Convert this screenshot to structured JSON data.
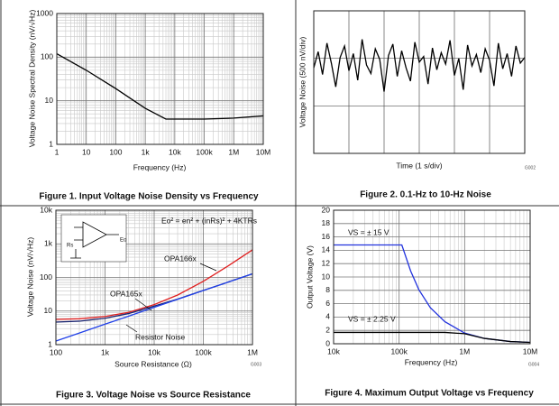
{
  "chart_data": [
    {
      "type": "line",
      "title": "Figure 1. Input Voltage Noise Density vs Frequency",
      "xlabel": "Frequency (Hz)",
      "ylabel": "Voltage Noise Spectral Density (nV/√Hz)",
      "xscale": "log",
      "yscale": "log",
      "grid": true,
      "color": "#000000",
      "x": [
        1,
        10,
        100,
        1000,
        5000,
        10000,
        100000,
        1000000,
        10000000
      ],
      "values": [
        120,
        50,
        19,
        6.7,
        3.8,
        3.8,
        3.8,
        4,
        4.5
      ],
      "xlim": [
        1,
        10000000
      ],
      "ylim": [
        1,
        1000
      ],
      "xticks": [
        1,
        10,
        100,
        {
          "value": 1000,
          "label": "1k"
        },
        {
          "value": 10000,
          "label": "10k"
        },
        {
          "value": 100000,
          "label": "100k"
        },
        {
          "value": 1000000,
          "label": "1M"
        },
        {
          "value": 10000000,
          "label": "10M"
        }
      ],
      "yticks": [
        1,
        10,
        100,
        1000
      ]
    },
    {
      "type": "line",
      "title": "Figure 2. 0.1-Hz to 10-Hz Noise",
      "xlabel": "Time (1 s/div)",
      "ylabel": "Voltage Noise (500 nV/div)",
      "code": "G002",
      "grid": true,
      "color": "#000000",
      "x": [
        0,
        0.125,
        0.25,
        0.375,
        0.5,
        0.625,
        0.75,
        0.875,
        1,
        1.125,
        1.25,
        1.375,
        1.5,
        1.625,
        1.75,
        1.875,
        2,
        2.125,
        2.25,
        2.375,
        2.5,
        2.625,
        2.75,
        2.875,
        3,
        3.125,
        3.25,
        3.375,
        3.5,
        3.625,
        3.75,
        3.875,
        4,
        4.125,
        4.25,
        4.375,
        4.5,
        4.625,
        4.75,
        4.875,
        5,
        5.125,
        5.25,
        5.375,
        5.5,
        5.625,
        5.75,
        5.875,
        6
      ],
      "values": [
        150,
        320,
        80,
        410,
        200,
        -50,
        260,
        380,
        120,
        300,
        20,
        450,
        180,
        90,
        350,
        240,
        -100,
        280,
        400,
        60,
        330,
        150,
        10,
        420,
        210,
        270,
        -20,
        360,
        130,
        310,
        190,
        440,
        70,
        250,
        -80,
        390,
        170,
        290,
        100,
        350,
        230,
        -40,
        410,
        140,
        300,
        60,
        380,
        200,
        260
      ],
      "xlim": [
        0,
        6
      ],
      "ylim": [
        -750,
        750
      ]
    },
    {
      "type": "line",
      "title": "Figure 3. Voltage Noise vs Source Resistance",
      "xlabel": "Source Resistance (Ω)",
      "ylabel": "Voltage Noise (nV/√Hz)",
      "code": "G003",
      "xscale": "log",
      "yscale": "log",
      "grid": true,
      "annotations": [
        "Eo² = en² + (inRs)² + 4KTRs"
      ],
      "inset_labels": [
        "Rs",
        "Eo"
      ],
      "x": [
        100,
        300,
        1000,
        3000,
        10000,
        30000,
        100000,
        300000,
        1000000
      ],
      "series": [
        {
          "name": "OPA166x",
          "color": "#e02020",
          "values": [
            5.65,
            5.9,
            6.9,
            9.1,
            15.5,
            30,
            76.7,
            207,
            662
          ]
        },
        {
          "name": "OPA165x",
          "color": "#1a2570",
          "values": [
            4.68,
            5.0,
            6.1,
            8.4,
            14.1,
            22.7,
            41,
            70.4,
            128
          ]
        },
        {
          "name": "Resistor Noise",
          "color": "#2040e8",
          "values": [
            1.28,
            2.22,
            4.07,
            7.03,
            12.9,
            22.3,
            40.7,
            70.3,
            128
          ]
        }
      ],
      "xlim": [
        100,
        1000000
      ],
      "ylim": [
        1,
        10000
      ],
      "xticks": [
        100,
        {
          "value": 1000,
          "label": "1k"
        },
        {
          "value": 10000,
          "label": "10k"
        },
        {
          "value": 100000,
          "label": "100k"
        },
        {
          "value": 1000000,
          "label": "1M"
        }
      ],
      "yticks": [
        1,
        10,
        100,
        {
          "value": 1000,
          "label": "1k"
        },
        {
          "value": 10000,
          "label": "10k"
        }
      ]
    },
    {
      "type": "line",
      "title": "Figure 4. Maximum Output Voltage vs Frequency",
      "xlabel": "Frequency (Hz)",
      "ylabel": "Output Voltage (V)",
      "code": "G004",
      "xscale": "log",
      "grid": true,
      "annotations": [
        "VS = ± 15 V",
        "VS = ± 2.25 V"
      ],
      "x": [
        10000,
        50000,
        110000,
        150000,
        200000,
        300000,
        500000,
        1000000,
        2000000,
        5000000,
        10000000
      ],
      "series": [
        {
          "color": "#2233dd",
          "values": [
            14.8,
            14.8,
            14.8,
            10.9,
            8.1,
            5.4,
            3.3,
            1.6,
            0.8,
            0.33,
            0.2
          ]
        },
        {
          "color": "#000000",
          "values": [
            1.7,
            1.7,
            1.7,
            1.7,
            1.7,
            1.7,
            1.7,
            1.5,
            0.8,
            0.33,
            0.2
          ]
        }
      ],
      "xlim": [
        10000,
        10000000
      ],
      "ylim": [
        0,
        20
      ],
      "xticks": [
        {
          "value": 10000,
          "label": "10k"
        },
        {
          "value": 100000,
          "label": "100k"
        },
        {
          "value": 1000000,
          "label": "1M"
        },
        {
          "value": 10000000,
          "label": "10M"
        }
      ],
      "yticks": [
        0,
        2,
        4,
        6,
        8,
        10,
        12,
        14,
        16,
        18,
        20
      ]
    }
  ]
}
